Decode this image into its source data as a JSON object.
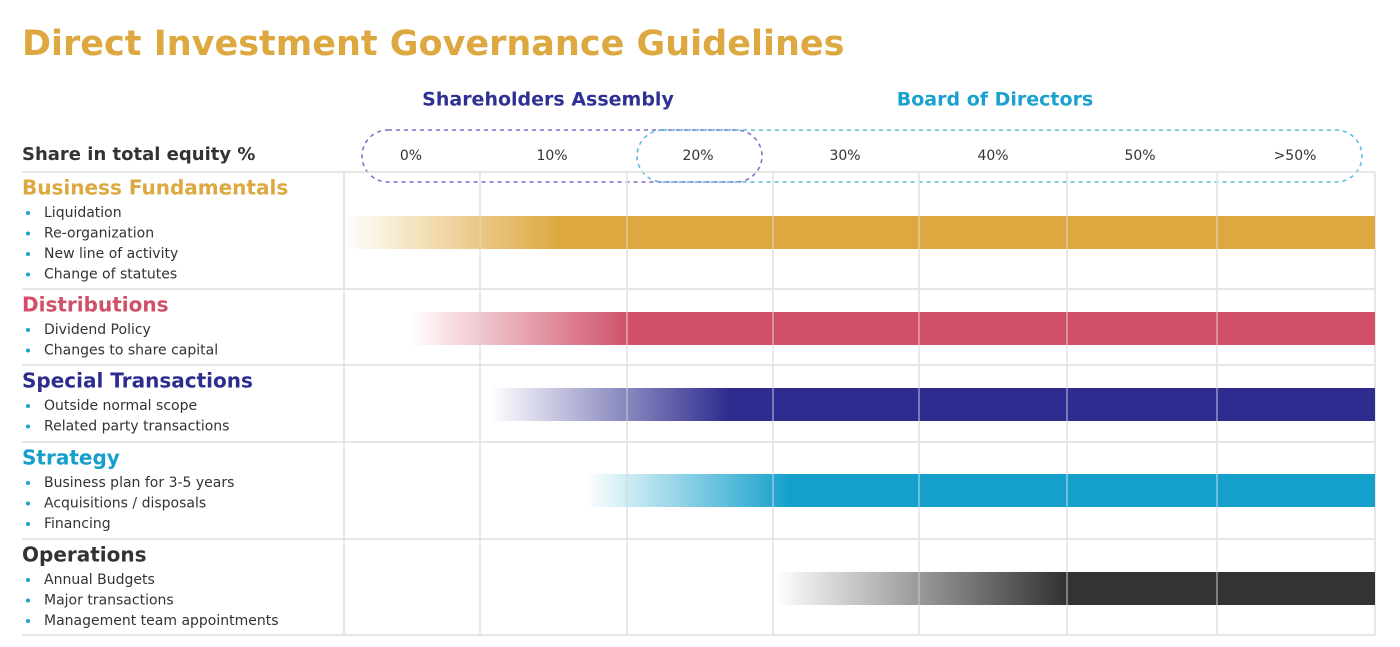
{
  "title": "Direct Investment Governance Guidelines",
  "header": {
    "shareholders": "Shareholders Assembly",
    "board": "Board of Directors",
    "equity_label": "Share in total equity %"
  },
  "columns": [
    "0%",
    "10%",
    "20%",
    "30%",
    "40%",
    "50%",
    ">50%"
  ],
  "sections": [
    {
      "title": "Business Fundamentals",
      "color": "#DDA83F",
      "items": [
        "Liquidation",
        "Re-organization",
        "New line of activity",
        "Change of statutes"
      ]
    },
    {
      "title": "Distributions",
      "color": "#CF5068",
      "items": [
        "Dividend Policy",
        "Changes to share capital"
      ]
    },
    {
      "title": "Special Transactions",
      "color": "#2E2C8E",
      "items": [
        "Outside normal scope",
        "Related party transactions"
      ]
    },
    {
      "title": "Strategy",
      "color": "#14A0CB",
      "items": [
        "Business plan for 3-5 years",
        "Acquisitions / disposals",
        "Financing"
      ]
    },
    {
      "title": "Operations",
      "color": "#333333",
      "items": [
        "Annual Budgets",
        "Major transactions",
        "Management team appointments"
      ]
    }
  ]
}
